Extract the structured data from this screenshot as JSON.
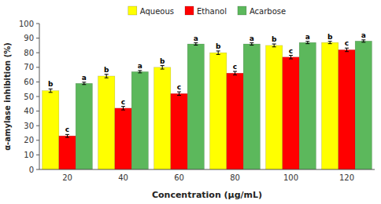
{
  "chart_data": {
    "type": "bar",
    "categories": [
      "20",
      "40",
      "60",
      "80",
      "100",
      "120"
    ],
    "series": [
      {
        "name": "Aqueous",
        "color": "#FFFF00",
        "values": [
          54,
          64,
          70,
          80,
          85,
          87
        ],
        "errors": [
          1.2,
          1.2,
          1.2,
          1.2,
          1.0,
          0.8
        ],
        "annotations": [
          "b",
          "b",
          "b",
          "b",
          "b",
          "b"
        ]
      },
      {
        "name": "Ethanol",
        "color": "#FF0000",
        "values": [
          23,
          42,
          52,
          66,
          77,
          82
        ],
        "errors": [
          1.0,
          1.2,
          1.2,
          1.2,
          1.2,
          1.2
        ],
        "annotations": [
          "c",
          "c",
          "c",
          "c",
          "c",
          "c"
        ]
      },
      {
        "name": "Acarbose",
        "color": "#5CB85C",
        "values": [
          59,
          67,
          86,
          86,
          87,
          88
        ],
        "errors": [
          0.8,
          0.8,
          0.8,
          0.8,
          0.8,
          0.8
        ],
        "annotations": [
          "a",
          "a",
          "a",
          "a",
          "a",
          "a"
        ]
      }
    ],
    "xlabel": "Concentration (μg/mL)",
    "ylabel": "α-amylase inhibition (%)",
    "ylim": [
      0,
      100
    ],
    "yticks": [
      0,
      10,
      20,
      30,
      40,
      50,
      60,
      70,
      80,
      90,
      100
    ],
    "grid": false,
    "legend": "top"
  }
}
